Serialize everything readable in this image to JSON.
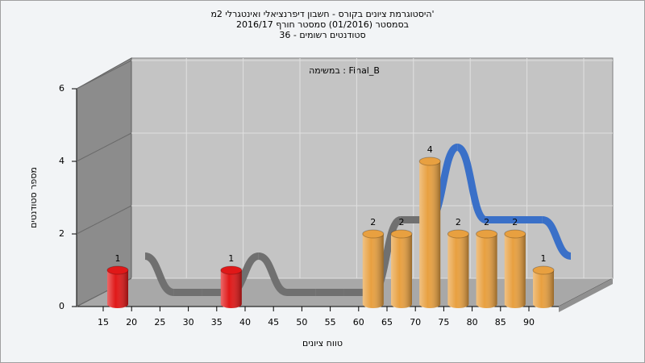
{
  "chart_data": {
    "type": "bar",
    "title": [
      "היסטוגרמת ציונים בקורס - חשבון דיפרנציאלי ואינטגרלי 2מ'",
      "בסמסטר  (01/2016)  סמסטר חורף 2016/17",
      "סטודנטים רשומים - 36"
    ],
    "annotation": "במשימה : Final_B",
    "y_label": "מספר סטודנטים",
    "x_label": "טווח ציונים",
    "categories": [
      "15",
      "20",
      "25",
      "30",
      "35",
      "40",
      "45",
      "50",
      "55",
      "60",
      "65",
      "70",
      "75",
      "80",
      "85",
      "90"
    ],
    "values": [
      1,
      0,
      0,
      0,
      1,
      0,
      0,
      0,
      0,
      2,
      2,
      4,
      2,
      2,
      2,
      1
    ],
    "colors": [
      "#e01818",
      "#e01818",
      "#e01818",
      "#e01818",
      "#e01818",
      "#e01818",
      "#e01818",
      "#e01818",
      "#e01818",
      "#e8a040",
      "#e8a040",
      "#e8a040",
      "#e8a040",
      "#e8a040",
      "#e8a040",
      "#e8a040"
    ],
    "trend_colors": [
      "#707070",
      "#707070",
      "#707070",
      "#707070",
      "#707070",
      "#707070",
      "#707070",
      "#707070",
      "#707070",
      "#707070",
      "#3a70c8",
      "#3a70c8",
      "#3a70c8",
      "#3a70c8",
      "#3a70c8",
      "#3a70c8"
    ],
    "ylim": [
      0,
      6
    ],
    "yticks": [
      0,
      2,
      4,
      6
    ],
    "grid": true
  }
}
